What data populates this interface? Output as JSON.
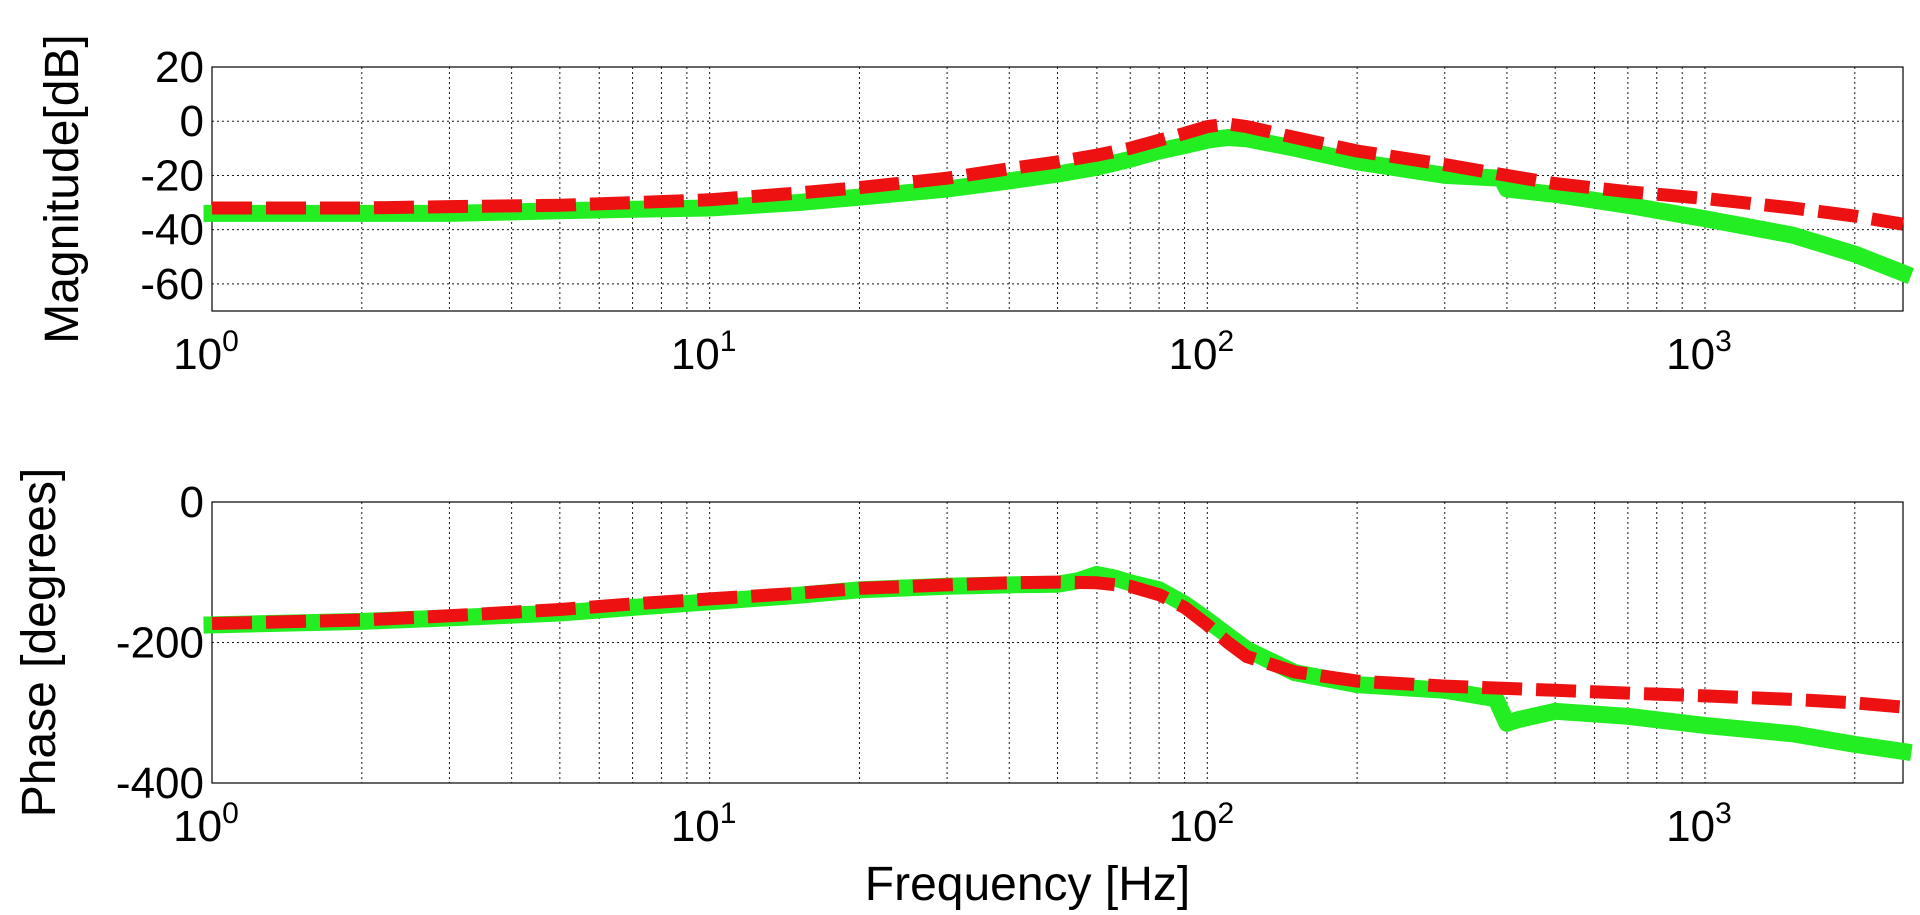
{
  "chart_data": [
    {
      "type": "line",
      "title": "",
      "ylabel": "Magnitude[dB]",
      "xlabel": "",
      "xscale": "log",
      "xlim": [
        1,
        2500
      ],
      "ylim": [
        -70,
        20
      ],
      "yticks": [
        20,
        0,
        -20,
        -40,
        -60
      ],
      "xticks": [
        {
          "base": "10",
          "exp": "0",
          "value": 1
        },
        {
          "base": "10",
          "exp": "1",
          "value": 10
        },
        {
          "base": "10",
          "exp": "2",
          "value": 100
        },
        {
          "base": "10",
          "exp": "3",
          "value": 1000
        }
      ],
      "grid": true,
      "series": [
        {
          "color": "#22ee22",
          "style": "solid-thick",
          "points": [
            [
              1,
              -34
            ],
            [
              1.5,
              -34
            ],
            [
              2,
              -34
            ],
            [
              3,
              -34
            ],
            [
              5,
              -33
            ],
            [
              7,
              -32.5
            ],
            [
              10,
              -32
            ],
            [
              15,
              -30
            ],
            [
              20,
              -28
            ],
            [
              30,
              -25
            ],
            [
              40,
              -22
            ],
            [
              50,
              -19.5
            ],
            [
              60,
              -17
            ],
            [
              70,
              -14
            ],
            [
              80,
              -11
            ],
            [
              90,
              -9
            ],
            [
              100,
              -7
            ],
            [
              110,
              -6
            ],
            [
              120,
              -6.5
            ],
            [
              150,
              -10
            ],
            [
              200,
              -15
            ],
            [
              300,
              -20
            ],
            [
              390,
              -21
            ],
            [
              400,
              -25
            ],
            [
              500,
              -27
            ],
            [
              700,
              -31
            ],
            [
              1000,
              -36
            ],
            [
              1500,
              -42
            ],
            [
              2000,
              -49
            ],
            [
              2500,
              -56
            ]
          ]
        },
        {
          "color": "#ee1111",
          "style": "dashed-thick",
          "points": [
            [
              1,
              -32
            ],
            [
              2,
              -32
            ],
            [
              3,
              -31.5
            ],
            [
              5,
              -31
            ],
            [
              7,
              -30
            ],
            [
              10,
              -29
            ],
            [
              15,
              -26.5
            ],
            [
              20,
              -24.5
            ],
            [
              30,
              -21
            ],
            [
              40,
              -17.5
            ],
            [
              50,
              -15
            ],
            [
              60,
              -12.5
            ],
            [
              70,
              -10
            ],
            [
              80,
              -7
            ],
            [
              90,
              -4.5
            ],
            [
              100,
              -2
            ],
            [
              110,
              -1
            ],
            [
              120,
              -2
            ],
            [
              150,
              -6
            ],
            [
              200,
              -11
            ],
            [
              300,
              -16
            ],
            [
              400,
              -20
            ],
            [
              500,
              -23
            ],
            [
              700,
              -26
            ],
            [
              1000,
              -28.5
            ],
            [
              1500,
              -32
            ],
            [
              2000,
              -35
            ],
            [
              2500,
              -38
            ]
          ]
        }
      ]
    },
    {
      "type": "line",
      "title": "",
      "ylabel": "Phase [degrees]",
      "xlabel": "Frequency [Hz]",
      "xscale": "log",
      "xlim": [
        1,
        2500
      ],
      "ylim": [
        -400,
        0
      ],
      "yticks": [
        0,
        -200,
        -400
      ],
      "xticks": [
        {
          "base": "10",
          "exp": "0",
          "value": 1
        },
        {
          "base": "10",
          "exp": "1",
          "value": 10
        },
        {
          "base": "10",
          "exp": "2",
          "value": 100
        },
        {
          "base": "10",
          "exp": "3",
          "value": 1000
        }
      ],
      "grid": true,
      "series": [
        {
          "color": "#22ee22",
          "style": "solid-thick",
          "points": [
            [
              1,
              -175
            ],
            [
              2,
              -170
            ],
            [
              3,
              -165
            ],
            [
              5,
              -158
            ],
            [
              7,
              -150
            ],
            [
              10,
              -142
            ],
            [
              15,
              -133
            ],
            [
              20,
              -125
            ],
            [
              30,
              -120
            ],
            [
              40,
              -118
            ],
            [
              50,
              -117
            ],
            [
              55,
              -112
            ],
            [
              60,
              -103
            ],
            [
              65,
              -108
            ],
            [
              70,
              -115
            ],
            [
              80,
              -125
            ],
            [
              90,
              -145
            ],
            [
              100,
              -168
            ],
            [
              110,
              -190
            ],
            [
              120,
              -210
            ],
            [
              150,
              -243
            ],
            [
              200,
              -260
            ],
            [
              300,
              -268
            ],
            [
              380,
              -280
            ],
            [
              400,
              -315
            ],
            [
              420,
              -310
            ],
            [
              500,
              -298
            ],
            [
              700,
              -305
            ],
            [
              1000,
              -318
            ],
            [
              1500,
              -330
            ],
            [
              2000,
              -345
            ],
            [
              2500,
              -355
            ]
          ]
        },
        {
          "color": "#ee1111",
          "style": "dashed-thick",
          "points": [
            [
              1,
              -173
            ],
            [
              2,
              -168
            ],
            [
              3,
              -162
            ],
            [
              5,
              -153
            ],
            [
              7,
              -145
            ],
            [
              10,
              -138
            ],
            [
              15,
              -130
            ],
            [
              20,
              -123
            ],
            [
              30,
              -118
            ],
            [
              40,
              -115
            ],
            [
              50,
              -114
            ],
            [
              60,
              -115
            ],
            [
              70,
              -120
            ],
            [
              80,
              -132
            ],
            [
              90,
              -150
            ],
            [
              100,
              -175
            ],
            [
              110,
              -200
            ],
            [
              120,
              -220
            ],
            [
              150,
              -242
            ],
            [
              200,
              -255
            ],
            [
              300,
              -262
            ],
            [
              500,
              -268
            ],
            [
              700,
              -272
            ],
            [
              1000,
              -276
            ],
            [
              1500,
              -281
            ],
            [
              2000,
              -286
            ],
            [
              2500,
              -292
            ]
          ]
        }
      ]
    }
  ]
}
